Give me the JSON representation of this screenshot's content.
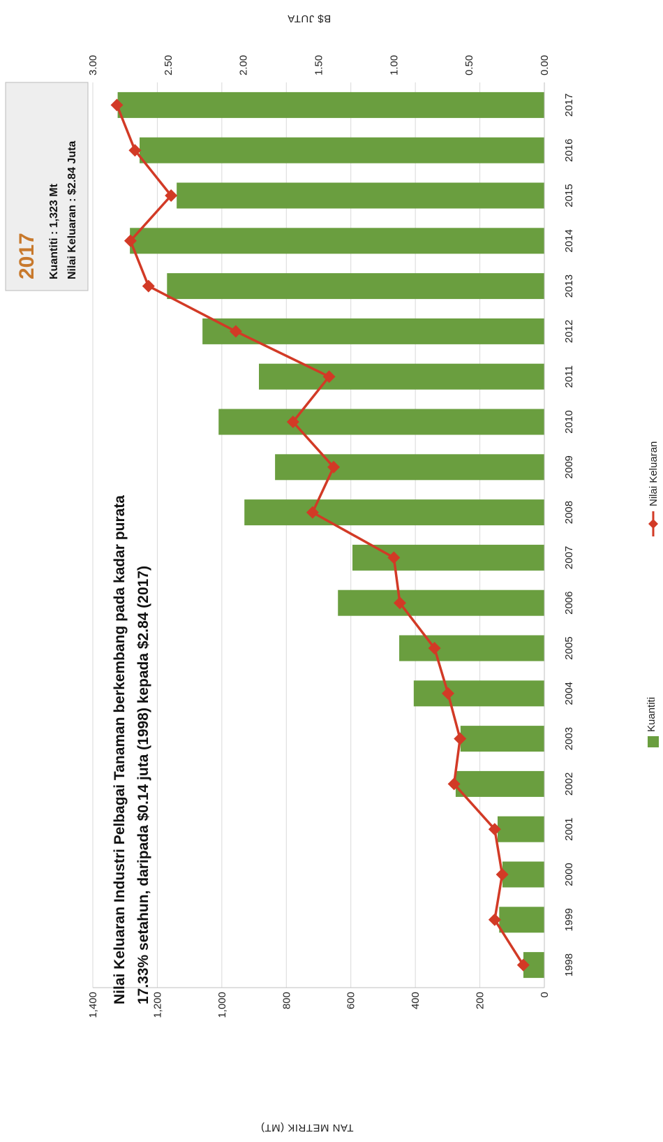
{
  "chart_data": {
    "type": "bar",
    "title": "Nilai Keluaran Industri Pelbagai Tanaman berkembang pada kadar purata",
    "subtitle": "17.33% setahun, daripada $0.14 juta (1998) kepada $2.84 (2017)",
    "categories": [
      "1998",
      "1999",
      "2000",
      "2001",
      "2002",
      "2003",
      "2004",
      "2005",
      "2006",
      "2007",
      "2008",
      "2009",
      "2010",
      "2011",
      "2012",
      "2013",
      "2014",
      "2015",
      "2016",
      "2017"
    ],
    "series": [
      {
        "name": "Kuantiti",
        "type": "bar",
        "axis": "left",
        "color": "#6a9e3f",
        "values": [
          65,
          140,
          130,
          145,
          275,
          260,
          405,
          450,
          640,
          595,
          930,
          835,
          1010,
          885,
          1060,
          1170,
          1285,
          1140,
          1255,
          1323
        ]
      },
      {
        "name": "Nilai Keluaran",
        "type": "line",
        "axis": "right",
        "color": "#d23a26",
        "marker": "diamond",
        "values": [
          0.14,
          0.33,
          0.28,
          0.33,
          0.6,
          0.56,
          0.64,
          0.73,
          0.96,
          1.0,
          1.54,
          1.4,
          1.67,
          1.43,
          2.05,
          2.63,
          2.75,
          2.48,
          2.72,
          2.84
        ]
      }
    ],
    "ylabel_left": "TAN METRIK (MT)",
    "ylim_left": [
      0,
      1400
    ],
    "yticks_left": [
      "0",
      "200",
      "400",
      "600",
      "800",
      "1,000",
      "1,200",
      "1,400"
    ],
    "ylabel_right": "B$ JUTA",
    "ylim_right": [
      0,
      3.0
    ],
    "yticks_right": [
      "0.00",
      "0.50",
      "1.00",
      "1.50",
      "2.00",
      "2.50",
      "3.00"
    ],
    "grid": true,
    "legend_position": "bottom",
    "orientation": "rotated 90 degrees clockwise",
    "annotation": {
      "year": "2017",
      "quantity": "Kuantiti : 1,323 Mt",
      "value": "Nilai Keluaran : $2.84 Juta",
      "year_color": "#c8792c",
      "box_fill": "#eeeeee"
    }
  },
  "colors": {
    "bar": "#6a9e3f",
    "line": "#d23a26",
    "grid": "#d9d9d9",
    "axis": "#bfbfbf"
  }
}
